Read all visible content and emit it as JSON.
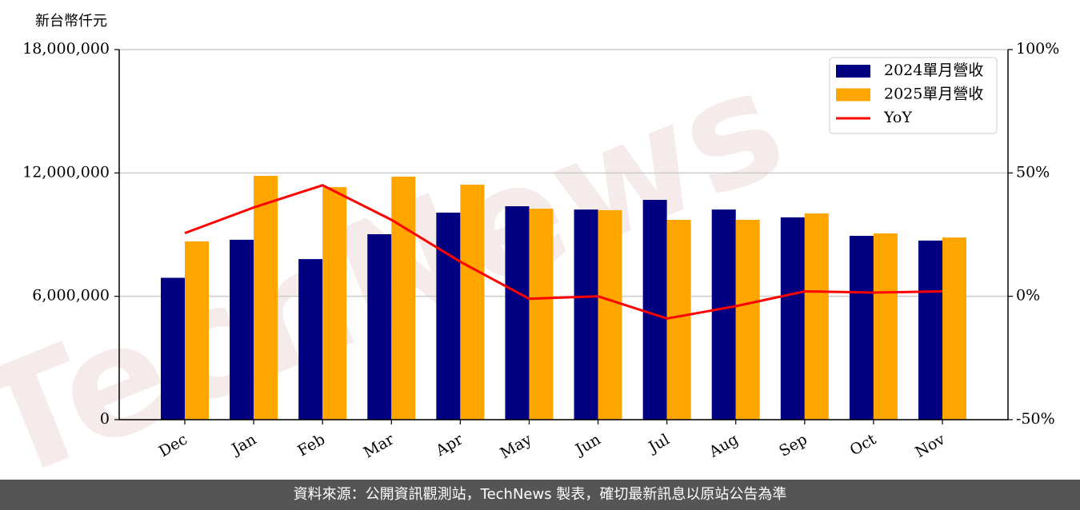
{
  "chart_data": {
    "type": "bar_line",
    "ylabel": "新台幣仟元",
    "watermark": "TechNews",
    "footer": "資料來源：公開資訊觀測站，TechNews 製表，確切最新訊息以原站公告為準",
    "categories": [
      "Dec",
      "Jan",
      "Feb",
      "Mar",
      "Apr",
      "May",
      "Jun",
      "Jul",
      "Aug",
      "Sep",
      "Oct",
      "Nov"
    ],
    "series": [
      {
        "name": "2024單月營收",
        "color": "#000080",
        "type": "bar",
        "values": [
          6900000,
          8750000,
          7810000,
          9020000,
          10070000,
          10380000,
          10220000,
          10690000,
          10220000,
          9840000,
          8940000,
          8710000
        ]
      },
      {
        "name": "2025單月營收",
        "color": "#ffa500",
        "type": "bar",
        "values": [
          8670000,
          11860000,
          11310000,
          11820000,
          11430000,
          10260000,
          10190000,
          9720000,
          9720000,
          10030000,
          9060000,
          8860000
        ]
      },
      {
        "name": "YoY",
        "color": "#ff0000",
        "type": "line",
        "axis": "y2",
        "values": [
          25.6,
          36,
          45,
          31,
          14,
          -1,
          0,
          -9,
          -4,
          2,
          1.5,
          2
        ]
      }
    ],
    "ylim": [
      0,
      18000000
    ],
    "yticks": [
      0,
      {
        "value": 6000000,
        "label": "6,000,000"
      },
      {
        "value": 12000000,
        "label": "12,000,000"
      },
      {
        "value": 18000000,
        "label": "18,000,000"
      }
    ],
    "y2lim": [
      -50,
      100
    ],
    "y2ticks": [
      {
        "value": -50,
        "label": "-50%"
      },
      {
        "value": 0,
        "label": "0%"
      },
      {
        "value": 50,
        "label": "50%"
      },
      {
        "value": 100,
        "label": "100%"
      }
    ],
    "grid": true,
    "legend": "upper right"
  }
}
